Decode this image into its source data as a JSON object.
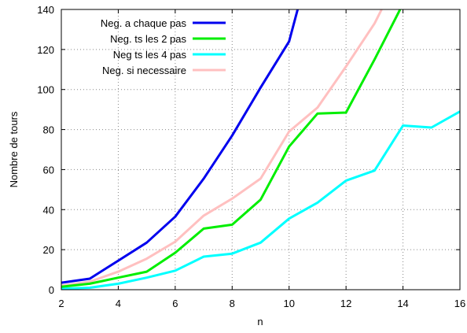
{
  "chart_data": {
    "type": "line",
    "title": "",
    "xlabel": "n",
    "ylabel": "Nombre de tours",
    "xlim": [
      2,
      16
    ],
    "ylim": [
      0,
      140
    ],
    "xticks": [
      2,
      4,
      6,
      8,
      10,
      12,
      14,
      16
    ],
    "yticks": [
      0,
      20,
      40,
      60,
      80,
      100,
      120,
      140
    ],
    "grid": true,
    "grid_style": "dotted",
    "legend_position": "top-left",
    "series": [
      {
        "name": "Neg. a chaque pas",
        "color": "#0000ee",
        "points": [
          [
            2,
            3.5
          ],
          [
            3,
            5.5
          ],
          [
            4,
            14.5
          ],
          [
            5,
            23.5
          ],
          [
            6,
            36.5
          ],
          [
            7,
            55.5
          ],
          [
            8,
            77
          ],
          [
            9,
            101
          ],
          [
            10,
            124
          ],
          [
            10.3,
            140
          ]
        ]
      },
      {
        "name": "Neg. ts les 2 pas",
        "color": "#00ee00",
        "points": [
          [
            2,
            1.5
          ],
          [
            3,
            3
          ],
          [
            4,
            6
          ],
          [
            5,
            9
          ],
          [
            6,
            18.5
          ],
          [
            7,
            30.5
          ],
          [
            8,
            32.5
          ],
          [
            9,
            45
          ],
          [
            10,
            71.5
          ],
          [
            11,
            88
          ],
          [
            12,
            88.5
          ],
          [
            13,
            115
          ],
          [
            13.9,
            140
          ]
        ]
      },
      {
        "name": "Neg ts les 4 pas",
        "color": "#00ffff",
        "points": [
          [
            2,
            0.5
          ],
          [
            3,
            1
          ],
          [
            4,
            3
          ],
          [
            5,
            6
          ],
          [
            6,
            9.5
          ],
          [
            7,
            16.5
          ],
          [
            8,
            18
          ],
          [
            9,
            23.5
          ],
          [
            10,
            35.5
          ],
          [
            11,
            43.5
          ],
          [
            12,
            54.5
          ],
          [
            13,
            59.5
          ],
          [
            14,
            82
          ],
          [
            15,
            81
          ],
          [
            16,
            89
          ]
        ]
      },
      {
        "name": "Neg. si necessaire",
        "color": "#ffc0c0",
        "points": [
          [
            2,
            2
          ],
          [
            3,
            4
          ],
          [
            4,
            9
          ],
          [
            5,
            15.5
          ],
          [
            6,
            24
          ],
          [
            7,
            37
          ],
          [
            8,
            45.5
          ],
          [
            9,
            55.5
          ],
          [
            10,
            79
          ],
          [
            11,
            91
          ],
          [
            12,
            111.5
          ],
          [
            13,
            133
          ],
          [
            13.25,
            140
          ]
        ]
      }
    ]
  }
}
